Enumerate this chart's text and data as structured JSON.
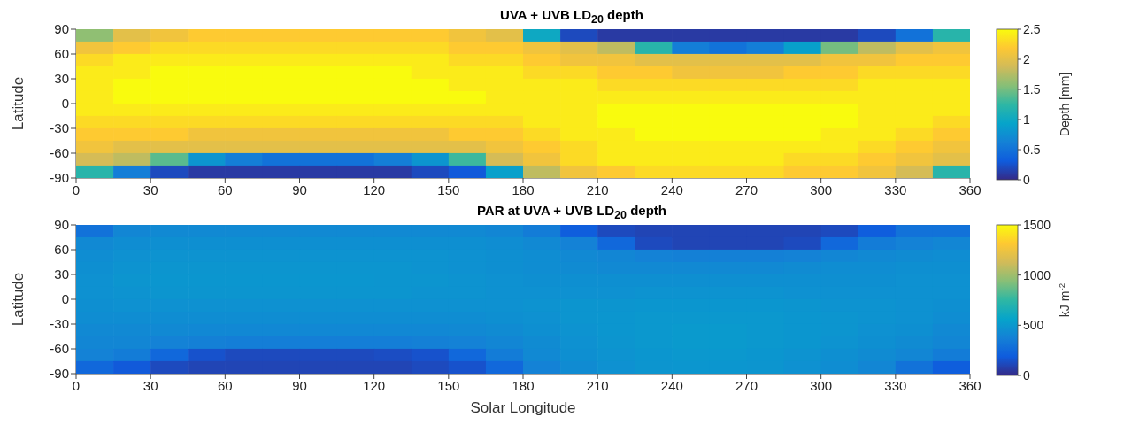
{
  "chart_data": [
    {
      "type": "heatmap",
      "title": "UVA + UVB LD$_{20}$ depth",
      "ylabel": "Latitude",
      "clabel": "Depth [mm]",
      "xlim": [
        0,
        360
      ],
      "xticks": [
        0,
        30,
        60,
        90,
        120,
        150,
        180,
        210,
        240,
        270,
        300,
        330,
        360
      ],
      "ylim": [
        -90,
        90
      ],
      "yticks": [
        90,
        60,
        30,
        0,
        -30,
        -60,
        -90
      ],
      "clim": [
        0,
        2.5
      ],
      "cticks": [
        0,
        0.5,
        1,
        1.5,
        2,
        2.5
      ],
      "cells": [
        [
          1.6,
          2.0,
          2.1,
          2.2,
          2.2,
          2.2,
          2.2,
          2.2,
          2.2,
          2.2,
          2.1,
          2.0,
          1.0,
          0.2,
          0.1,
          0.1,
          0.1,
          0.1,
          0.1,
          0.1,
          0.1,
          0.2,
          0.5,
          1.2
        ],
        [
          2.1,
          2.2,
          2.3,
          2.3,
          2.3,
          2.3,
          2.3,
          2.3,
          2.3,
          2.3,
          2.2,
          2.2,
          2.1,
          2.0,
          1.8,
          1.2,
          0.6,
          0.5,
          0.6,
          0.9,
          1.5,
          1.8,
          2.0,
          2.1
        ],
        [
          2.3,
          2.4,
          2.4,
          2.4,
          2.4,
          2.4,
          2.4,
          2.4,
          2.4,
          2.4,
          2.3,
          2.3,
          2.2,
          2.1,
          2.1,
          2.0,
          2.0,
          2.0,
          2.0,
          2.0,
          2.1,
          2.1,
          2.2,
          2.2
        ],
        [
          2.4,
          2.4,
          2.5,
          2.5,
          2.5,
          2.5,
          2.5,
          2.5,
          2.5,
          2.4,
          2.4,
          2.4,
          2.3,
          2.3,
          2.2,
          2.2,
          2.1,
          2.1,
          2.1,
          2.2,
          2.2,
          2.3,
          2.3,
          2.3
        ],
        [
          2.4,
          2.5,
          2.5,
          2.5,
          2.5,
          2.5,
          2.5,
          2.5,
          2.5,
          2.5,
          2.4,
          2.4,
          2.4,
          2.4,
          2.3,
          2.3,
          2.3,
          2.3,
          2.3,
          2.3,
          2.3,
          2.4,
          2.4,
          2.4
        ],
        [
          2.4,
          2.5,
          2.5,
          2.5,
          2.5,
          2.5,
          2.5,
          2.5,
          2.5,
          2.5,
          2.5,
          2.4,
          2.4,
          2.4,
          2.4,
          2.4,
          2.4,
          2.4,
          2.4,
          2.4,
          2.4,
          2.4,
          2.4,
          2.4
        ],
        [
          2.4,
          2.4,
          2.4,
          2.4,
          2.4,
          2.4,
          2.4,
          2.4,
          2.4,
          2.4,
          2.4,
          2.4,
          2.4,
          2.4,
          2.5,
          2.5,
          2.5,
          2.5,
          2.5,
          2.5,
          2.5,
          2.4,
          2.4,
          2.4
        ],
        [
          2.3,
          2.3,
          2.3,
          2.3,
          2.3,
          2.3,
          2.3,
          2.3,
          2.3,
          2.3,
          2.3,
          2.3,
          2.4,
          2.4,
          2.5,
          2.5,
          2.5,
          2.5,
          2.5,
          2.5,
          2.5,
          2.4,
          2.4,
          2.3
        ],
        [
          2.2,
          2.2,
          2.2,
          2.1,
          2.1,
          2.1,
          2.1,
          2.1,
          2.1,
          2.1,
          2.2,
          2.2,
          2.3,
          2.4,
          2.4,
          2.5,
          2.5,
          2.5,
          2.5,
          2.5,
          2.4,
          2.4,
          2.3,
          2.2
        ],
        [
          2.1,
          2.0,
          2.0,
          2.0,
          2.0,
          2.0,
          2.0,
          2.0,
          2.0,
          2.0,
          2.0,
          2.1,
          2.2,
          2.3,
          2.4,
          2.4,
          2.4,
          2.4,
          2.4,
          2.4,
          2.4,
          2.3,
          2.2,
          2.1
        ],
        [
          1.9,
          1.8,
          1.4,
          0.8,
          0.6,
          0.5,
          0.5,
          0.5,
          0.6,
          0.8,
          1.3,
          1.9,
          2.1,
          2.3,
          2.4,
          2.4,
          2.4,
          2.4,
          2.4,
          2.3,
          2.3,
          2.2,
          2.1,
          2.0
        ],
        [
          1.2,
          0.6,
          0.2,
          0.1,
          0.1,
          0.1,
          0.1,
          0.1,
          0.1,
          0.2,
          0.3,
          0.9,
          1.8,
          2.1,
          2.2,
          2.3,
          2.3,
          2.3,
          2.3,
          2.2,
          2.2,
          2.1,
          1.9,
          1.2
        ]
      ]
    },
    {
      "type": "heatmap",
      "title": "PAR at UVA + UVB LD$_{20}$ depth",
      "xlabel": "Solar Longitude",
      "ylabel": "Latitude",
      "clabel": "kJ m$^{-2}$",
      "xlim": [
        0,
        360
      ],
      "xticks": [
        0,
        30,
        60,
        90,
        120,
        150,
        180,
        210,
        240,
        270,
        300,
        330,
        360
      ],
      "ylim": [
        -90,
        90
      ],
      "yticks": [
        90,
        60,
        30,
        0,
        -30,
        -60,
        -90
      ],
      "clim": [
        0,
        1500
      ],
      "cticks": [
        0,
        500,
        1000,
        1500
      ],
      "cells": [
        [
          300,
          400,
          420,
          420,
          420,
          420,
          420,
          420,
          420,
          420,
          420,
          400,
          350,
          200,
          120,
          100,
          100,
          100,
          100,
          100,
          120,
          200,
          300,
          300
        ],
        [
          420,
          440,
          450,
          450,
          450,
          450,
          450,
          450,
          450,
          450,
          450,
          440,
          420,
          380,
          250,
          120,
          100,
          100,
          100,
          120,
          250,
          350,
          380,
          400
        ],
        [
          440,
          460,
          470,
          470,
          470,
          470,
          470,
          470,
          470,
          470,
          460,
          450,
          440,
          420,
          400,
          380,
          370,
          370,
          370,
          380,
          400,
          420,
          430,
          440
        ],
        [
          450,
          470,
          480,
          480,
          480,
          480,
          480,
          480,
          480,
          470,
          460,
          450,
          440,
          430,
          420,
          420,
          420,
          420,
          420,
          430,
          440,
          440,
          450,
          450
        ],
        [
          460,
          480,
          490,
          490,
          490,
          490,
          490,
          490,
          480,
          480,
          470,
          460,
          450,
          450,
          450,
          450,
          450,
          450,
          450,
          450,
          450,
          450,
          460,
          460
        ],
        [
          460,
          470,
          480,
          480,
          480,
          480,
          480,
          480,
          480,
          470,
          470,
          460,
          460,
          460,
          460,
          470,
          470,
          470,
          470,
          460,
          460,
          460,
          460,
          460
        ],
        [
          450,
          460,
          460,
          460,
          460,
          460,
          460,
          460,
          460,
          460,
          460,
          460,
          470,
          480,
          480,
          490,
          490,
          490,
          490,
          480,
          470,
          470,
          460,
          450
        ],
        [
          440,
          440,
          440,
          440,
          440,
          440,
          440,
          440,
          440,
          440,
          440,
          450,
          460,
          480,
          490,
          500,
          500,
          500,
          500,
          490,
          480,
          470,
          460,
          440
        ],
        [
          420,
          420,
          420,
          410,
          410,
          410,
          410,
          410,
          410,
          410,
          420,
          430,
          450,
          470,
          490,
          500,
          510,
          510,
          500,
          490,
          480,
          460,
          450,
          420
        ],
        [
          400,
          400,
          380,
          370,
          360,
          360,
          360,
          360,
          360,
          370,
          380,
          400,
          430,
          460,
          480,
          500,
          510,
          510,
          500,
          490,
          470,
          450,
          430,
          400
        ],
        [
          380,
          350,
          250,
          150,
          120,
          120,
          120,
          120,
          130,
          150,
          250,
          350,
          420,
          450,
          470,
          490,
          500,
          500,
          490,
          470,
          450,
          430,
          400,
          350
        ],
        [
          250,
          180,
          120,
          100,
          100,
          100,
          100,
          100,
          100,
          120,
          150,
          250,
          380,
          430,
          460,
          480,
          490,
          490,
          480,
          460,
          440,
          400,
          300,
          200
        ]
      ]
    }
  ]
}
